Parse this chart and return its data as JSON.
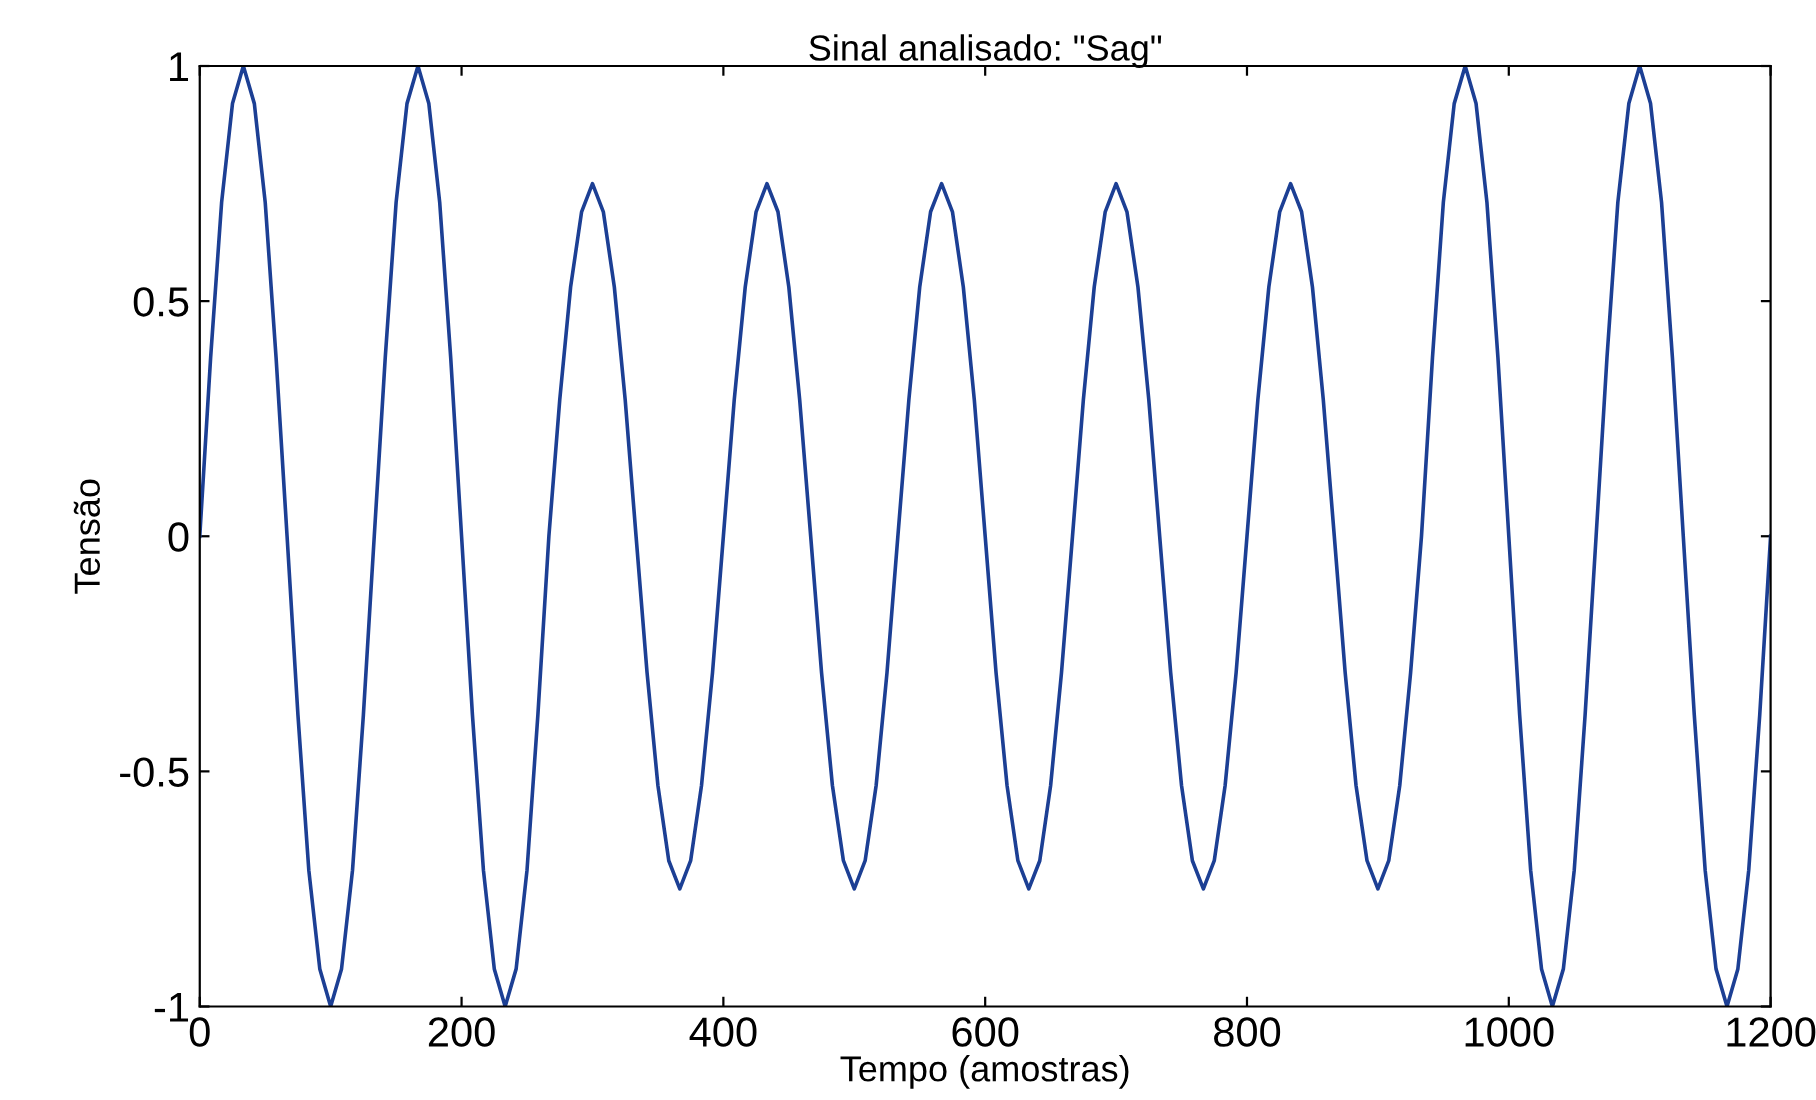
{
  "chart_data": {
    "type": "line",
    "title": "Sinal analisado: \"Sag\"",
    "xlabel": "Tempo (amostras)",
    "ylabel": "Tensão",
    "xlim": [
      0,
      1200
    ],
    "ylim": [
      -1,
      1
    ],
    "xticks": [
      0,
      200,
      400,
      600,
      800,
      1000,
      1200
    ],
    "yticks": [
      -1,
      -0.5,
      0,
      0.5,
      1
    ],
    "grid": false,
    "marker": "none",
    "line_style": "solid",
    "x": [
      0,
      8.3,
      16.7,
      25,
      33.3,
      41.7,
      50,
      58.3,
      66.7,
      75,
      83.3,
      91.7,
      100,
      108.3,
      116.7,
      125,
      133.3,
      141.7,
      150,
      158.3,
      166.7,
      175,
      183.3,
      191.7,
      200,
      208.3,
      216.7,
      225,
      233.3,
      241.7,
      250,
      258.3,
      266.7,
      275,
      283.3,
      291.7,
      300,
      308.3,
      316.7,
      325,
      333.3,
      341.7,
      350,
      358.3,
      366.7,
      375,
      383.3,
      391.7,
      400,
      408.3,
      416.7,
      425,
      433.3,
      441.7,
      450,
      458.3,
      466.7,
      475,
      483.3,
      491.7,
      500,
      508.3,
      516.7,
      525,
      533.3,
      541.7,
      550,
      558.3,
      566.7,
      575,
      583.3,
      591.7,
      600,
      608.3,
      616.7,
      625,
      633.3,
      641.7,
      650,
      658.3,
      666.7,
      675,
      683.3,
      691.7,
      700,
      708.3,
      716.7,
      725,
      733.3,
      741.7,
      750,
      758.3,
      766.7,
      775,
      783.3,
      791.7,
      800,
      808.3,
      816.7,
      825,
      833.3,
      841.7,
      850,
      858.3,
      866.7,
      875,
      883.3,
      891.7,
      900,
      908.3,
      916.7,
      925,
      933.3,
      941.7,
      950,
      958.3,
      966.7,
      975,
      983.3,
      991.7,
      1000,
      1008.3,
      1016.7,
      1025,
      1033.3,
      1041.7,
      1050,
      1058.3,
      1066.7,
      1075,
      1083.3,
      1091.7,
      1100,
      1108.3,
      1116.7,
      1125,
      1133.3,
      1141.7,
      1150,
      1158.3,
      1166.7,
      1175,
      1183.3,
      1191.7,
      1200
    ],
    "series": [
      {
        "color": "#1c3f94",
        "values": [
          0,
          0.38,
          0.71,
          0.92,
          1,
          0.92,
          0.71,
          0.38,
          0,
          -0.38,
          -0.71,
          -0.92,
          -1,
          -0.92,
          -0.71,
          -0.38,
          0,
          0.38,
          0.71,
          0.92,
          1,
          0.92,
          0.71,
          0.38,
          0,
          -0.38,
          -0.71,
          -0.92,
          -1,
          -0.92,
          -0.71,
          -0.38,
          0,
          0.29,
          0.53,
          0.69,
          0.75,
          0.69,
          0.53,
          0.29,
          0,
          -0.29,
          -0.53,
          -0.69,
          -0.75,
          -0.69,
          -0.53,
          -0.29,
          0,
          0.29,
          0.53,
          0.69,
          0.75,
          0.69,
          0.53,
          0.29,
          0,
          -0.29,
          -0.53,
          -0.69,
          -0.75,
          -0.69,
          -0.53,
          -0.29,
          0,
          0.29,
          0.53,
          0.69,
          0.75,
          0.69,
          0.53,
          0.29,
          0,
          -0.29,
          -0.53,
          -0.69,
          -0.75,
          -0.69,
          -0.53,
          -0.29,
          0,
          0.29,
          0.53,
          0.69,
          0.75,
          0.69,
          0.53,
          0.29,
          0,
          -0.29,
          -0.53,
          -0.69,
          -0.75,
          -0.69,
          -0.53,
          -0.29,
          0,
          0.29,
          0.53,
          0.69,
          0.75,
          0.69,
          0.53,
          0.29,
          0,
          -0.29,
          -0.53,
          -0.69,
          -0.75,
          -0.69,
          -0.53,
          -0.29,
          0,
          0.38,
          0.71,
          0.92,
          1,
          0.92,
          0.71,
          0.38,
          0,
          -0.38,
          -0.71,
          -0.92,
          -1,
          -0.92,
          -0.71,
          -0.38,
          0,
          0.38,
          0.71,
          0.92,
          1,
          0.92,
          0.71,
          0.38,
          0,
          -0.38,
          -0.71,
          -0.92,
          -1,
          -0.92,
          -0.71,
          -0.38,
          0
        ]
      }
    ]
  }
}
